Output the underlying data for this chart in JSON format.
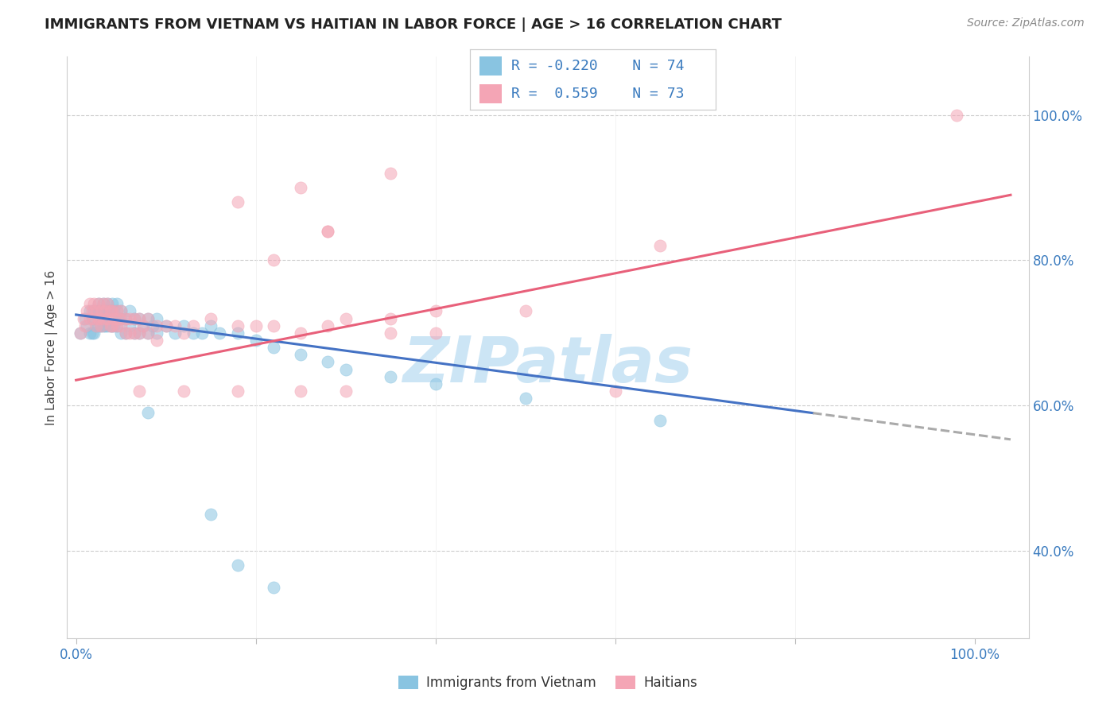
{
  "title": "IMMIGRANTS FROM VIETNAM VS HAITIAN IN LABOR FORCE | AGE > 16 CORRELATION CHART",
  "source": "Source: ZipAtlas.com",
  "ylabel": "In Labor Force | Age > 16",
  "blue_color": "#89c4e1",
  "pink_color": "#f4a5b5",
  "blue_line_color": "#4472c4",
  "pink_line_color": "#e8607a",
  "dashed_line_color": "#aaaaaa",
  "watermark": "ZIPatlas",
  "watermark_color": "#cce5f5",
  "legend_r1": "R = -0.220",
  "legend_n1": "N = 74",
  "legend_r2": "R =  0.559",
  "legend_n2": "N = 73",
  "legend_label1": "Immigrants from Vietnam",
  "legend_label2": "Haitians",
  "xlim": [
    -0.01,
    1.06
  ],
  "ylim": [
    0.28,
    1.08
  ],
  "blue_intercept": 0.725,
  "blue_slope": -0.165,
  "pink_intercept": 0.635,
  "pink_slope": 0.245,
  "vietnam_x": [
    0.005,
    0.01,
    0.012,
    0.015,
    0.015,
    0.018,
    0.018,
    0.02,
    0.02,
    0.02,
    0.022,
    0.022,
    0.025,
    0.025,
    0.025,
    0.028,
    0.028,
    0.03,
    0.03,
    0.03,
    0.032,
    0.032,
    0.035,
    0.035,
    0.035,
    0.038,
    0.038,
    0.04,
    0.04,
    0.04,
    0.042,
    0.042,
    0.045,
    0.045,
    0.045,
    0.048,
    0.05,
    0.05,
    0.05,
    0.055,
    0.055,
    0.06,
    0.06,
    0.065,
    0.065,
    0.07,
    0.07,
    0.075,
    0.08,
    0.08,
    0.085,
    0.09,
    0.09,
    0.1,
    0.11,
    0.12,
    0.13,
    0.14,
    0.15,
    0.16,
    0.18,
    0.2,
    0.22,
    0.25,
    0.28,
    0.3,
    0.35,
    0.4,
    0.5,
    0.65,
    0.08,
    0.15,
    0.18,
    0.22
  ],
  "vietnam_y": [
    0.7,
    0.72,
    0.71,
    0.73,
    0.7,
    0.72,
    0.7,
    0.73,
    0.72,
    0.7,
    0.73,
    0.71,
    0.74,
    0.73,
    0.71,
    0.73,
    0.71,
    0.74,
    0.73,
    0.71,
    0.73,
    0.71,
    0.74,
    0.73,
    0.71,
    0.73,
    0.71,
    0.74,
    0.73,
    0.71,
    0.73,
    0.71,
    0.74,
    0.73,
    0.71,
    0.72,
    0.73,
    0.72,
    0.7,
    0.72,
    0.7,
    0.73,
    0.71,
    0.72,
    0.7,
    0.72,
    0.7,
    0.71,
    0.72,
    0.7,
    0.71,
    0.72,
    0.7,
    0.71,
    0.7,
    0.71,
    0.7,
    0.7,
    0.71,
    0.7,
    0.7,
    0.69,
    0.68,
    0.67,
    0.66,
    0.65,
    0.64,
    0.63,
    0.61,
    0.58,
    0.59,
    0.45,
    0.38,
    0.35
  ],
  "haiti_x": [
    0.005,
    0.008,
    0.01,
    0.012,
    0.015,
    0.015,
    0.018,
    0.02,
    0.02,
    0.022,
    0.022,
    0.025,
    0.025,
    0.028,
    0.028,
    0.03,
    0.03,
    0.032,
    0.035,
    0.035,
    0.038,
    0.038,
    0.04,
    0.04,
    0.042,
    0.045,
    0.045,
    0.048,
    0.05,
    0.05,
    0.055,
    0.055,
    0.06,
    0.06,
    0.065,
    0.065,
    0.07,
    0.07,
    0.075,
    0.08,
    0.08,
    0.09,
    0.09,
    0.1,
    0.11,
    0.12,
    0.13,
    0.15,
    0.18,
    0.2,
    0.22,
    0.25,
    0.28,
    0.3,
    0.35,
    0.4,
    0.5,
    0.6,
    0.65,
    0.98,
    0.07,
    0.12,
    0.18,
    0.25,
    0.3,
    0.35,
    0.4,
    0.28,
    0.22,
    0.18,
    0.28,
    0.25,
    0.35
  ],
  "haiti_y": [
    0.7,
    0.72,
    0.71,
    0.73,
    0.74,
    0.72,
    0.73,
    0.74,
    0.72,
    0.73,
    0.71,
    0.74,
    0.72,
    0.73,
    0.71,
    0.74,
    0.72,
    0.73,
    0.74,
    0.72,
    0.73,
    0.71,
    0.73,
    0.71,
    0.72,
    0.73,
    0.71,
    0.72,
    0.73,
    0.71,
    0.72,
    0.7,
    0.72,
    0.7,
    0.72,
    0.7,
    0.72,
    0.7,
    0.71,
    0.72,
    0.7,
    0.71,
    0.69,
    0.71,
    0.71,
    0.7,
    0.71,
    0.72,
    0.71,
    0.71,
    0.71,
    0.7,
    0.71,
    0.72,
    0.72,
    0.73,
    0.73,
    0.62,
    0.82,
    1.0,
    0.62,
    0.62,
    0.62,
    0.62,
    0.62,
    0.7,
    0.7,
    0.84,
    0.8,
    0.88,
    0.84,
    0.9,
    0.92
  ]
}
